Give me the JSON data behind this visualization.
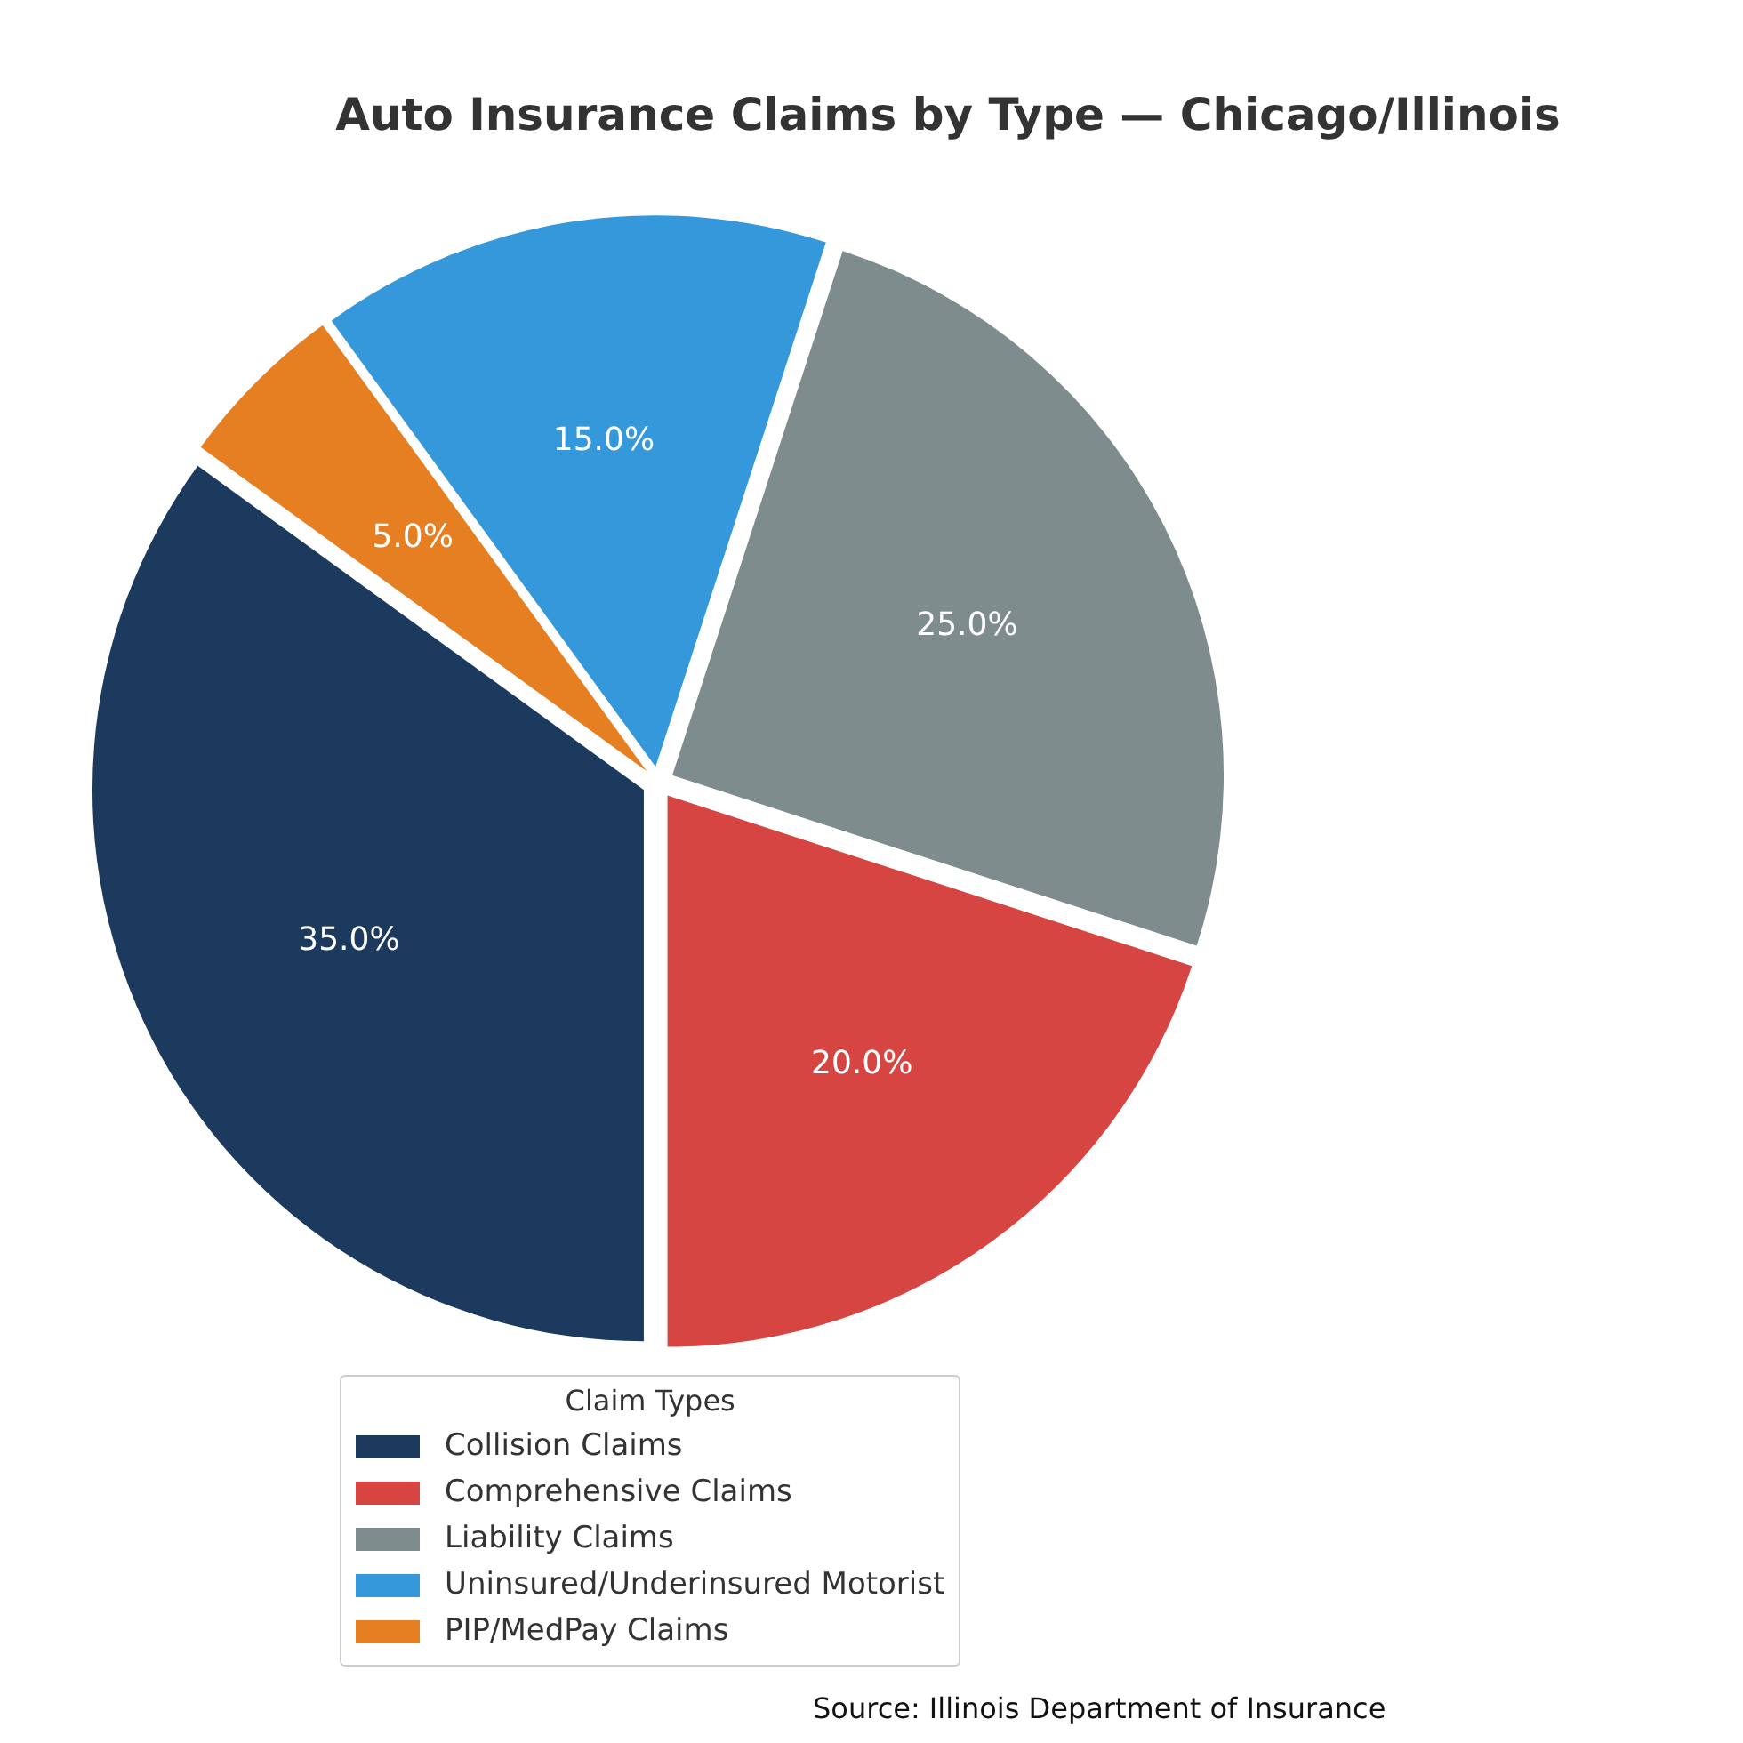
{
  "chart_data": {
    "type": "pie",
    "title": "Auto Insurance Claims by Type — Chicago/Illinois",
    "categories": [
      "Collision Claims",
      "Comprehensive Claims",
      "Liability Claims",
      "Uninsured/Underinsured Motorist",
      "PIP/MedPay Claims"
    ],
    "values": [
      35,
      20,
      25,
      15,
      5
    ],
    "colors": [
      "#1c3a5e",
      "#d64541",
      "#7f8c8d",
      "#3498db",
      "#e67e22"
    ],
    "value_labels": [
      "35.0%",
      "20.0%",
      "25.0%",
      "15.0%",
      "5.0%"
    ],
    "legend": "bottom",
    "legend_title": "Claim Types",
    "annotations": [
      "Source: Illinois Department of Insurance"
    ]
  }
}
